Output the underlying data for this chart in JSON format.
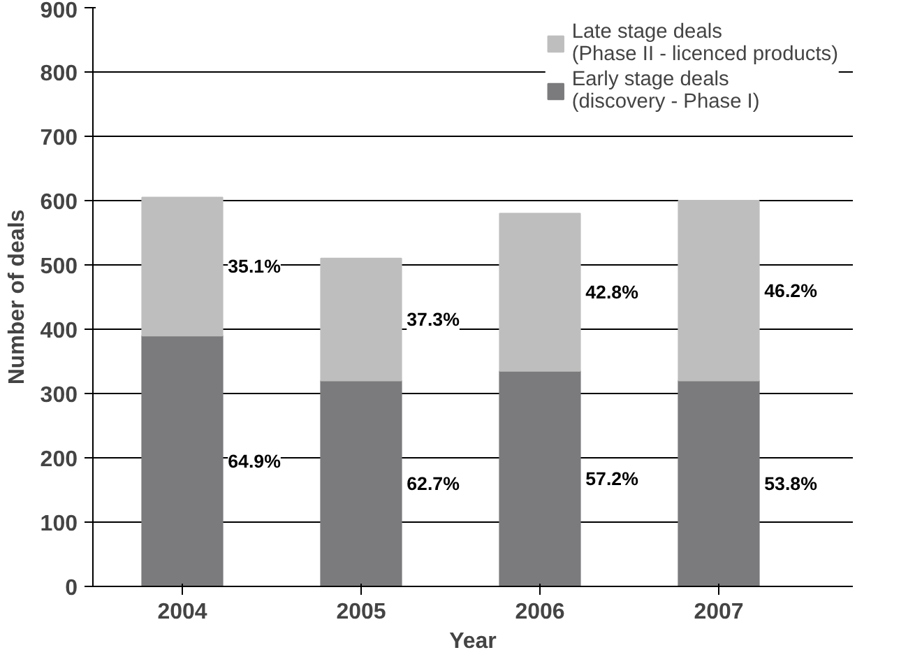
{
  "chart_data": {
    "type": "bar",
    "stacked": true,
    "xlabel": "Year",
    "ylabel": "Number of deals",
    "categories": [
      "2004",
      "2005",
      "2006",
      "2007"
    ],
    "series": [
      {
        "name": "Early stage deals\n(discovery - Phase I)",
        "color": "#7b7b7d",
        "values": [
          390,
          320,
          335,
          320
        ]
      },
      {
        "name": "Late stage deals\n(Phase II - licenced products)",
        "color": "#bebebe",
        "values": [
          215,
          190,
          245,
          280
        ]
      }
    ],
    "annotations": [
      "64.9%",
      "62.7%",
      "57.2%",
      "53.8%",
      "35.1%",
      "37.3%",
      "42.8%",
      "46.2%"
    ],
    "ylim": [
      0,
      900
    ],
    "yticks": [
      0,
      100,
      200,
      300,
      400,
      500,
      600,
      700,
      800,
      900
    ],
    "grid": "y",
    "legend": "top right"
  }
}
